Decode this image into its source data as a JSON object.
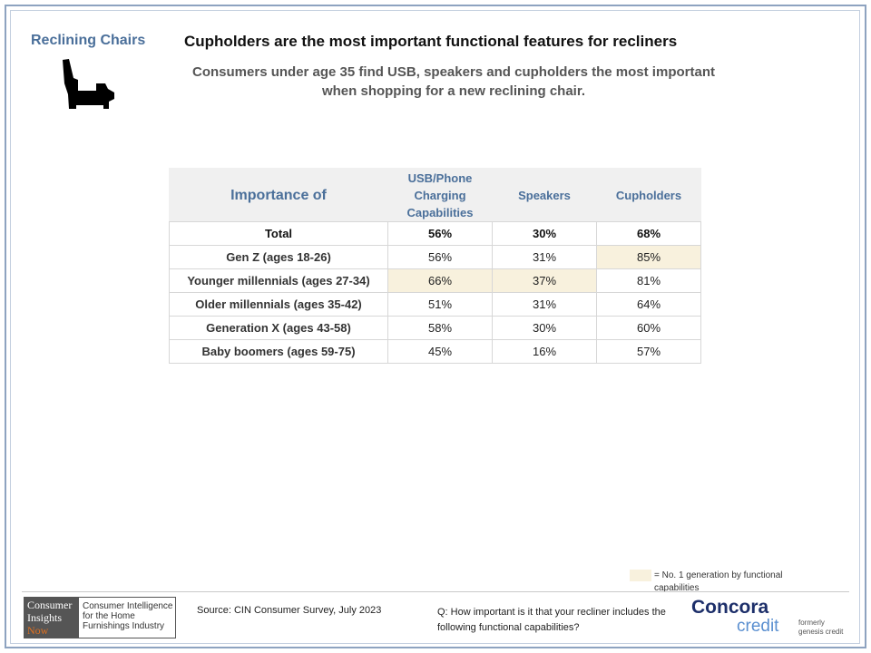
{
  "header": {
    "category": "Reclining Chairs",
    "headline": "Cupholders are the most important  functional  features for recliners",
    "subhead": "Consumers under age 35 find USB, speakers and cupholders the most important when shopping for a new reclining chair."
  },
  "table": {
    "columns": [
      "Importance of",
      "USB/Phone Charging Capabilities",
      "Speakers",
      "Cupholders"
    ],
    "rows": [
      {
        "label": "Total",
        "values": [
          "56%",
          "30%",
          "68%"
        ],
        "highlight": [
          false,
          false,
          false
        ]
      },
      {
        "label": "Gen Z (ages 18-26)",
        "values": [
          "56%",
          "31%",
          "85%"
        ],
        "highlight": [
          false,
          false,
          true
        ]
      },
      {
        "label": "Younger millennials (ages 27-34)",
        "values": [
          "66%",
          "37%",
          "81%"
        ],
        "highlight": [
          true,
          true,
          false
        ]
      },
      {
        "label": "Older millennials (ages 35-42)",
        "values": [
          "51%",
          "31%",
          "64%"
        ],
        "highlight": [
          false,
          false,
          false
        ]
      },
      {
        "label": "Generation X (ages 43-58)",
        "values": [
          "58%",
          "30%",
          "60%"
        ],
        "highlight": [
          false,
          false,
          false
        ]
      },
      {
        "label": "Baby boomers (ages 59-75)",
        "values": [
          "45%",
          "16%",
          "57%"
        ],
        "highlight": [
          false,
          false,
          false
        ]
      }
    ],
    "highlight_color": "#f8f1dd"
  },
  "legend": {
    "text": "= No. 1 generation by functional capabilities"
  },
  "footer": {
    "cin_logo": {
      "line1": "Consumer",
      "line2": "Insights",
      "line3": "Now"
    },
    "cin_tagline": "Consumer Intelligence for the Home Furnishings Industry",
    "source": "Source: CIN Consumer Survey, July 2023",
    "question": "Q: How important is it that your recliner includes the following functional capabilities?",
    "sponsor": {
      "name": "Concora",
      "sub": "credit",
      "formerly": "formerly genesis credit"
    }
  },
  "colors": {
    "accent": "#4a6f9a",
    "frame": "#8ea3c0"
  },
  "icons": {
    "category_icon": "recliner-chair-icon"
  }
}
